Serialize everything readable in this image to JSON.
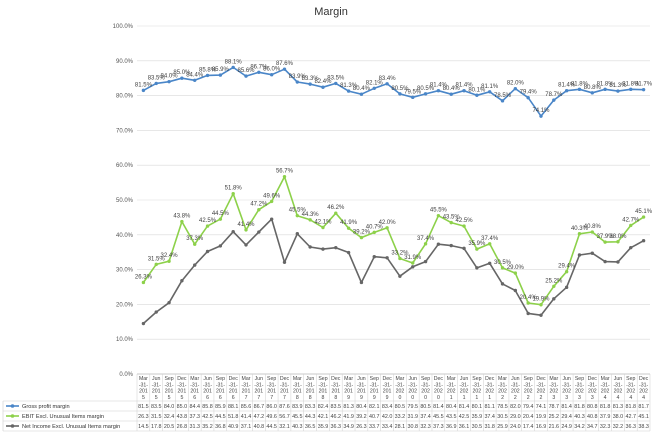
{
  "chart_data": {
    "type": "line",
    "title": "Margin",
    "xlabel": "",
    "ylabel": "",
    "ylim": [
      0,
      100
    ],
    "yticks": [
      "0.0%",
      "10.0%",
      "20.0%",
      "30.0%",
      "40.0%",
      "50.0%",
      "60.0%",
      "70.0%",
      "80.0%",
      "90.0%",
      "100.0%"
    ],
    "grid": true,
    "legend": "bottom data table",
    "categories": [
      {
        "m": "Mar",
        "y": "2015"
      },
      {
        "m": "Jun",
        "y": "2015"
      },
      {
        "m": "Sep",
        "y": "2015"
      },
      {
        "m": "Dec",
        "y": "2015"
      },
      {
        "m": "Mar",
        "y": "2016"
      },
      {
        "m": "Jun",
        "y": "2016"
      },
      {
        "m": "Sep",
        "y": "2016"
      },
      {
        "m": "Dec",
        "y": "2016"
      },
      {
        "m": "Mar",
        "y": "2017"
      },
      {
        "m": "Jun",
        "y": "2017"
      },
      {
        "m": "Sep",
        "y": "2017"
      },
      {
        "m": "Dec",
        "y": "2017"
      },
      {
        "m": "Mar",
        "y": "2018"
      },
      {
        "m": "Jun",
        "y": "2018"
      },
      {
        "m": "Sep",
        "y": "2018"
      },
      {
        "m": "Dec",
        "y": "2018"
      },
      {
        "m": "Mar",
        "y": "2019"
      },
      {
        "m": "Jun",
        "y": "2019"
      },
      {
        "m": "Sep",
        "y": "2019"
      },
      {
        "m": "Dec",
        "y": "2019"
      },
      {
        "m": "Mar",
        "y": "2020"
      },
      {
        "m": "Jun",
        "y": "2020"
      },
      {
        "m": "Sep",
        "y": "2020"
      },
      {
        "m": "Dec",
        "y": "2020"
      },
      {
        "m": "Mar",
        "y": "2021"
      },
      {
        "m": "Jun",
        "y": "2021"
      },
      {
        "m": "Sep",
        "y": "2021"
      },
      {
        "m": "Dec",
        "y": "2021"
      },
      {
        "m": "Mar",
        "y": "2022"
      },
      {
        "m": "Jun",
        "y": "2022"
      },
      {
        "m": "Sep",
        "y": "2022"
      },
      {
        "m": "Dec",
        "y": "2022"
      },
      {
        "m": "Mar",
        "y": "2023"
      },
      {
        "m": "Jun",
        "y": "2023"
      },
      {
        "m": "Sep",
        "y": "2023"
      },
      {
        "m": "Dec",
        "y": "2023"
      },
      {
        "m": "Mar",
        "y": "2024"
      },
      {
        "m": "Jun",
        "y": "2024"
      },
      {
        "m": "Sep",
        "y": "2024"
      },
      {
        "m": "Dec",
        "y": "2024"
      }
    ],
    "series": [
      {
        "name": "Gross profit margin",
        "color": "#4a86c8",
        "show_labels": true,
        "values": [
          81.5,
          83.5,
          84.0,
          85.0,
          84.4,
          85.8,
          85.9,
          88.1,
          85.6,
          86.7,
          86.0,
          87.6,
          83.9,
          83.3,
          82.4,
          83.5,
          81.3,
          80.4,
          82.1,
          83.4,
          80.5,
          79.5,
          80.5,
          81.4,
          80.4,
          81.4,
          80.1,
          81.1,
          78.5,
          82.0,
          79.4,
          74.1,
          78.7,
          81.4,
          81.8,
          80.8,
          81.8,
          81.3,
          81.8,
          81.7
        ]
      },
      {
        "name": "EBIT Excl. Unusual Items margin",
        "color": "#8dd14a",
        "show_labels": true,
        "values": [
          26.3,
          31.5,
          32.4,
          43.8,
          37.3,
          42.5,
          44.5,
          51.8,
          41.4,
          47.2,
          49.6,
          56.7,
          45.5,
          44.3,
          42.1,
          46.2,
          41.9,
          39.2,
          40.7,
          42.0,
          33.2,
          31.9,
          37.4,
          45.5,
          43.5,
          42.5,
          35.9,
          37.4,
          30.5,
          29.0,
          20.4,
          19.9,
          25.2,
          29.4,
          40.3,
          40.8,
          37.9,
          38.0,
          42.7,
          45.1
        ]
      },
      {
        "name": "Net Income Excl. Unusual Items margin",
        "color": "#666666",
        "show_labels": false,
        "values": [
          14.5,
          17.8,
          20.5,
          26.8,
          31.3,
          35.2,
          36.8,
          40.9,
          37.1,
          40.8,
          44.5,
          32.1,
          40.3,
          36.5,
          35.9,
          36.3,
          34.9,
          26.3,
          33.7,
          33.4,
          28.1,
          30.8,
          32.3,
          37.3,
          36.9,
          36.1,
          30.5,
          31.8,
          25.9,
          24.0,
          17.4,
          16.9,
          21.6,
          24.9,
          34.2,
          34.7,
          32.3,
          32.2,
          36.3,
          38.3
        ]
      }
    ],
    "table_rows": [
      [
        "81.5",
        "83.5",
        "84.0",
        "85.0",
        "84.4",
        "85.8",
        "85.9",
        "88.1",
        "85.6",
        "86.7",
        "86.0",
        "87.6",
        "83.9",
        "83.3",
        "82.4",
        "83.5",
        "81.3",
        "80.4",
        "82.1",
        "83.4",
        "80.5",
        "79.5",
        "80.5",
        "81.4",
        "80.4",
        "81.4",
        "80.1",
        "81.1",
        "78.5",
        "82.0",
        "79.4",
        "74.1",
        "78.7",
        "81.4",
        "81.8",
        "80.8",
        "81.8",
        "81.3",
        "81.8",
        "81.7"
      ],
      [
        "26.3",
        "31.5",
        "32.4",
        "43.8",
        "37.3",
        "42.5",
        "44.5",
        "51.8",
        "41.4",
        "47.2",
        "49.6",
        "56.7",
        "45.5",
        "44.3",
        "42.1",
        "46.2",
        "41.9",
        "39.2",
        "40.7",
        "42.0",
        "33.2",
        "31.9",
        "37.4",
        "45.5",
        "43.5",
        "42.5",
        "35.9",
        "37.4",
        "30.5",
        "29.0",
        "20.4",
        "19.9",
        "25.2",
        "29.4",
        "40.3",
        "40.8",
        "37.9",
        "38.0",
        "42.7",
        "45.1"
      ],
      [
        "14.5",
        "17.8",
        "20.5",
        "26.8",
        "31.3",
        "35.2",
        "36.8",
        "40.9",
        "37.1",
        "40.8",
        "44.5",
        "32.1",
        "40.3",
        "36.5",
        "35.9",
        "36.3",
        "34.9",
        "26.3",
        "33.7",
        "33.4",
        "28.1",
        "30.8",
        "32.3",
        "37.3",
        "36.9",
        "36.1",
        "30.5",
        "31.8",
        "25.9",
        "24.0",
        "17.4",
        "16.9",
        "21.6",
        "24.9",
        "34.2",
        "34.7",
        "32.3",
        "32.2",
        "36.3",
        "38.3"
      ]
    ]
  }
}
